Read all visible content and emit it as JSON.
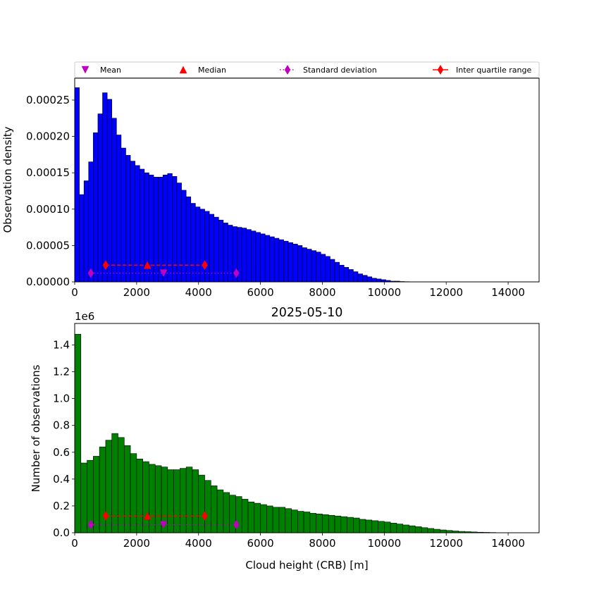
{
  "legend": {
    "position": "top",
    "entries": [
      {
        "label": "Mean",
        "marker": "triangle-down",
        "color": "#bf00bf"
      },
      {
        "label": "Median",
        "marker": "triangle-up",
        "color": "#ff0000"
      },
      {
        "label": "Standard deviation",
        "marker": "diamond",
        "line": "dotted",
        "color": "#bf00bf"
      },
      {
        "label": "Inter quartile range",
        "marker": "diamond",
        "line": "solid",
        "color": "#ff0000"
      }
    ]
  },
  "chart_data": [
    {
      "type": "bar",
      "name": "density",
      "title": "",
      "xlabel": "",
      "ylabel": "Observation density",
      "bar_color": "#0000ff",
      "xlim": [
        0,
        15000
      ],
      "ylim": [
        0,
        0.00028
      ],
      "xticks": [
        0,
        2000,
        4000,
        6000,
        8000,
        10000,
        12000,
        14000
      ],
      "xtick_labels": [
        "0",
        "2000",
        "4000",
        "6000",
        "8000",
        "10000",
        "12000",
        "14000"
      ],
      "yticks": [
        0,
        5e-05,
        0.0001,
        0.00015,
        0.0002,
        0.00025
      ],
      "ytick_labels": [
        "0.00000",
        "0.00005",
        "0.00010",
        "0.00015",
        "0.00020",
        "0.00025"
      ],
      "bin_width": 150,
      "bin_start": 0,
      "values": [
        0.000267,
        0.00012,
        0.000139,
        0.000165,
        0.000205,
        0.000231,
        0.00026,
        0.000251,
        0.000225,
        0.000202,
        0.000184,
        0.000174,
        0.000166,
        0.00016,
        0.000155,
        0.00015,
        0.000147,
        0.000144,
        0.000144,
        0.000147,
        0.000149,
        0.000145,
        0.000136,
        0.000126,
        0.000117,
        0.000108,
        0.000103,
        0.0001,
        9.7e-05,
        9.3e-05,
        8.9e-05,
        8.5e-05,
        8.1e-05,
        7.8e-05,
        7.6e-05,
        7.5e-05,
        7.4e-05,
        7.2e-05,
        7e-05,
        6.8e-05,
        6.6e-05,
        6.4e-05,
        6.2e-05,
        6e-05,
        5.8e-05,
        5.6e-05,
        5.4e-05,
        5.2e-05,
        5e-05,
        4.7e-05,
        4.5e-05,
        4.3e-05,
        4.1e-05,
        3.8e-05,
        3.5e-05,
        3.1e-05,
        2.7e-05,
        2.3e-05,
        2e-05,
        1.7e-05,
        1.4e-05,
        1.1e-05,
        9e-06,
        7e-06,
        5e-06,
        4e-06,
        3e-06,
        2e-06,
        1e-06,
        1e-06,
        5e-07,
        3e-07,
        2e-07,
        1e-07,
        5e-08
      ],
      "stats": {
        "mean": {
          "x": 2870,
          "y": 1.2e-05
        },
        "median": {
          "x": 2350,
          "y": 2.3e-05
        },
        "std_range": {
          "x": [
            520,
            5220
          ],
          "y": 1.2e-05
        },
        "iqr_range": {
          "x": [
            1000,
            4200
          ],
          "y": 2.3e-05
        }
      }
    },
    {
      "type": "bar",
      "name": "counts",
      "title": "2025-05-10",
      "xlabel": "Cloud height (CRB) [m]",
      "ylabel": "Number of observations",
      "scale_label": "1e6",
      "bar_color": "#008000",
      "xlim": [
        0,
        15000
      ],
      "ylim": [
        0,
        1.56
      ],
      "xticks": [
        0,
        2000,
        4000,
        6000,
        8000,
        10000,
        12000,
        14000
      ],
      "xtick_labels": [
        "0",
        "2000",
        "4000",
        "6000",
        "8000",
        "10000",
        "12000",
        "14000"
      ],
      "yticks": [
        0,
        0.2,
        0.4,
        0.6,
        0.8,
        1.0,
        1.2,
        1.4
      ],
      "ytick_labels": [
        "0.0",
        "0.2",
        "0.4",
        "0.6",
        "0.8",
        "1.0",
        "1.2",
        "1.4"
      ],
      "bin_width": 200,
      "bin_start": 0,
      "values": [
        1.48,
        0.52,
        0.54,
        0.57,
        0.64,
        0.69,
        0.74,
        0.71,
        0.65,
        0.59,
        0.55,
        0.53,
        0.51,
        0.5,
        0.49,
        0.47,
        0.47,
        0.48,
        0.49,
        0.47,
        0.43,
        0.39,
        0.35,
        0.32,
        0.3,
        0.28,
        0.27,
        0.25,
        0.23,
        0.22,
        0.21,
        0.2,
        0.19,
        0.19,
        0.18,
        0.17,
        0.16,
        0.155,
        0.145,
        0.14,
        0.135,
        0.13,
        0.125,
        0.12,
        0.115,
        0.11,
        0.1,
        0.095,
        0.09,
        0.085,
        0.08,
        0.072,
        0.065,
        0.058,
        0.052,
        0.045,
        0.038,
        0.032,
        0.026,
        0.021,
        0.017,
        0.013,
        0.01,
        0.008,
        0.006,
        0.004,
        0.003,
        0.002,
        0.001,
        0.001,
        0.0005,
        0.0003,
        0.0002,
        0.0001,
        5e-05
      ],
      "stats": {
        "mean": {
          "x": 2870,
          "y": 0.06
        },
        "median": {
          "x": 2350,
          "y": 0.125
        },
        "std_range": {
          "x": [
            520,
            5220
          ],
          "y": 0.06
        },
        "iqr_range": {
          "x": [
            1000,
            4200
          ],
          "y": 0.125
        }
      }
    }
  ]
}
